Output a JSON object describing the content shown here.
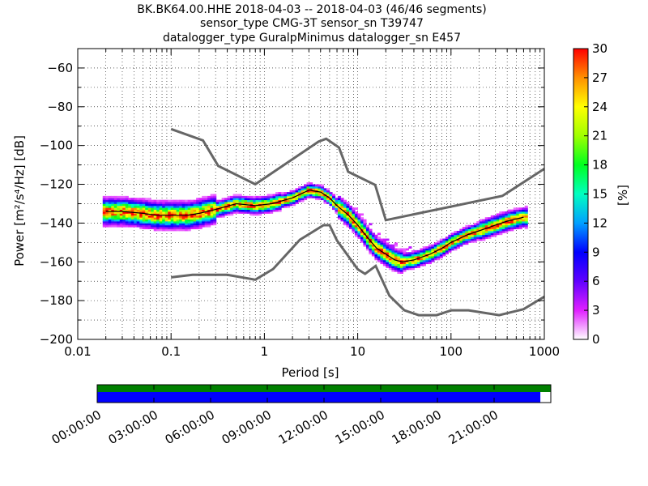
{
  "title": {
    "line1": "BK.BK64.00.HHE   2018-04-03 -- 2018-04-03  (46/46 segments)",
    "line2": "sensor_type CMG-3T sensor_sn T39747",
    "line3": "datalogger_type GuralpMinimus datalogger_sn E457"
  },
  "colorbar": {
    "label": "[%]",
    "ticks": [
      "0",
      "3",
      "6",
      "9",
      "12",
      "15",
      "18",
      "21",
      "24",
      "27",
      "30"
    ],
    "range": [
      0,
      30
    ],
    "colors": [
      "#ffffff",
      "#e020ff",
      "#6000ff",
      "#0000ff",
      "#00a0ff",
      "#00ffc0",
      "#00ff20",
      "#a0ff00",
      "#ffff00",
      "#ff9000",
      "#ff0000"
    ]
  },
  "timeline": {
    "labels": [
      "00:00:00",
      "03:00:00",
      "06:00:00",
      "09:00:00",
      "12:00:00",
      "15:00:00",
      "18:00:00",
      "21:00:00"
    ],
    "coverage_fraction": 0.977,
    "top_bar_color": "#008000",
    "bottom_bar_color": "#0000ff"
  },
  "chart_data": {
    "type": "heatmap",
    "xlabel": "Period [s]",
    "ylabel": "Power [m²/s⁴/Hz] [dB]",
    "xscale": "log",
    "xlim": [
      0.01,
      1000
    ],
    "ylim": [
      -200,
      -50
    ],
    "x_ticks": [
      "0.01",
      "0.1",
      "1",
      "10",
      "100",
      "1000"
    ],
    "y_ticks": [
      "−200",
      "−180",
      "−160",
      "−140",
      "−120",
      "−100",
      "−80",
      "−60"
    ],
    "grid": "dotted",
    "series": [
      {
        "role": "high_noise_model",
        "color": "#666666",
        "x": [
          0.1,
          0.22,
          0.32,
          0.8,
          3.8,
          4.6,
          6.3,
          7.9,
          15.4,
          20,
          354.8,
          1000
        ],
        "y": [
          -91.5,
          -97.4,
          -110.5,
          -120,
          -98,
          -96.5,
          -101,
          -113.5,
          -120.3,
          -138.5,
          -126,
          -112
        ]
      },
      {
        "role": "low_noise_model",
        "color": "#666666",
        "x": [
          0.1,
          0.17,
          0.4,
          0.8,
          1.24,
          2.4,
          4.3,
          5,
          6,
          10,
          12,
          15.6,
          21.9,
          31.6,
          45,
          70,
          101,
          154,
          328,
          600,
          1000
        ],
        "y": [
          -168,
          -166.7,
          -166.7,
          -169.2,
          -163.7,
          -148.6,
          -141.1,
          -141.1,
          -149,
          -163.8,
          -166.2,
          -162.1,
          -177.5,
          -185,
          -187.5,
          -187.5,
          -185,
          -185,
          -187.5,
          -184.4,
          -178
        ]
      },
      {
        "role": "mode",
        "color": "#000000",
        "x": [
          0.02,
          0.03,
          0.05,
          0.07,
          0.1,
          0.15,
          0.2,
          0.3,
          0.5,
          0.8,
          1.2,
          2,
          3,
          4,
          5,
          6,
          8,
          10,
          13,
          16,
          20,
          25,
          30,
          40,
          60,
          80,
          100,
          150,
          200,
          300,
          400,
          600
        ],
        "y": [
          -134,
          -134,
          -135,
          -136,
          -136,
          -136,
          -135,
          -133,
          -130,
          -131,
          -130,
          -127,
          -123,
          -124,
          -127,
          -131,
          -136,
          -141,
          -148,
          -153,
          -156,
          -159,
          -160,
          -159,
          -156,
          -153,
          -150,
          -146,
          -144,
          -141,
          -139,
          -137
        ]
      }
    ]
  }
}
